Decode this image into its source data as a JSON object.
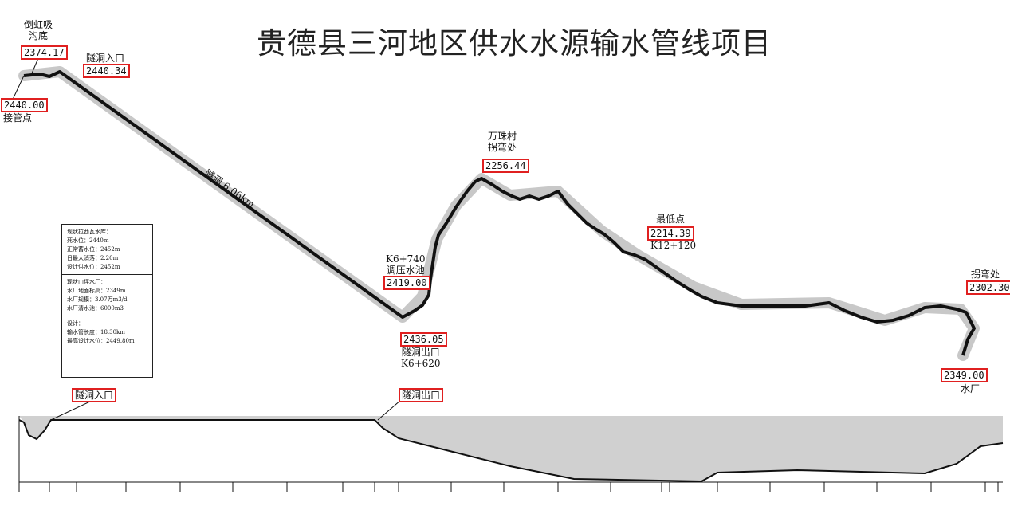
{
  "title": "贵德县三河地区供水水源输水管线项目",
  "points": {
    "siphon_name": "倒虹吸\n沟底",
    "siphon_elev": "2374.17",
    "join_elev": "2440.00",
    "join_name": "接管点",
    "tunnel_in_name": "隧洞入口",
    "tunnel_in_elev": "2440.34",
    "tunnel_label": "隧洞  6.06km",
    "tank_name": "K6+740\n调压水池",
    "tank_elev": "2419.00",
    "tunnel_out_elev": "2436.05",
    "tunnel_out_name": "隧洞出口\nK6+620",
    "wanzhu_name": "万珠村\n拐弯处",
    "wanzhu_elev": "2256.44",
    "lowest_name": "最低点",
    "lowest_elev": "2214.39",
    "lowest_station": "K12+120",
    "bend_name": "拐弯处",
    "bend_elev": "2302.30",
    "plant_elev": "2349.00",
    "plant_name": "水厂"
  },
  "legend": {
    "reservoir": [
      "现状拉西瓦水库：",
      "死水位：2440m",
      "正常蓄水位：2452m",
      "日最大消落：2.20m",
      "设计供水位：2452m"
    ],
    "plant": [
      "现状山坪水厂：",
      "水厂地面标高：2349m",
      "水厂规模：3.07万m3/d",
      "水厂清水池：6000m3"
    ],
    "design": [
      "设计：",
      "输水管长度：18.30km",
      "最高设计水位：2449.80m"
    ]
  },
  "profile": {
    "tunnel_in": "隧洞入口",
    "tunnel_out": "隧洞出口"
  },
  "colors": {
    "highlight": "#e02020",
    "corridor": "#c8c8c8",
    "pipe": "#111111",
    "profile_fill": "#d0d0d0"
  }
}
